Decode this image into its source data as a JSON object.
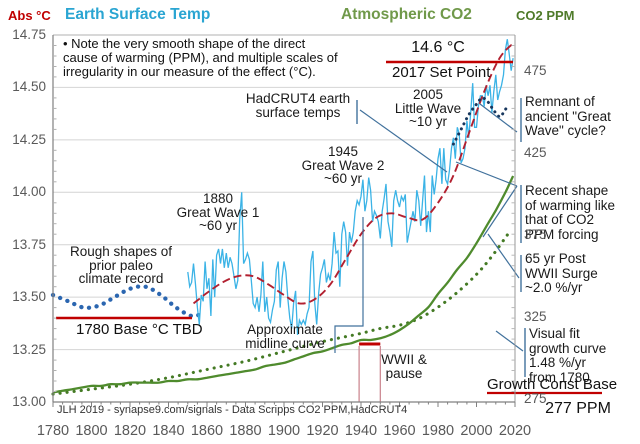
{
  "header": {
    "left_axis_title": "Abs °C",
    "temp_title": "Earth Surface Temp",
    "co2_title": "Atmospheric CO2",
    "right_axis_title": "CO2 PPM"
  },
  "note": {
    "lines": [
      "• Note the very smooth shape of the direct",
      "cause of warming (PPM), and multiple scales of",
      "irregularity in our measure of the effect (°C)."
    ]
  },
  "annotations": {
    "hadcrut": {
      "lines": [
        "HadCRUT4 earth",
        "surface temps"
      ]
    },
    "little_wave": {
      "lines": [
        "2005",
        "Little Wave",
        "~10 yr"
      ]
    },
    "great_wave_2": {
      "lines": [
        "1945",
        "Great Wave 2",
        "~60 yr"
      ]
    },
    "great_wave_1": {
      "lines": [
        "1880",
        "Great Wave 1",
        "~60 yr"
      ]
    },
    "paleo": {
      "lines": [
        "Rough shapes of",
        "prior paleo",
        "climate record"
      ]
    },
    "midline": {
      "lines": [
        "Approximate",
        "midline curve"
      ]
    },
    "wwii": {
      "lines": [
        "WWII &",
        "pause"
      ]
    },
    "remnant": {
      "lines": [
        "Remnant of",
        "ancient \"Great",
        "Wave\" cycle?"
      ]
    },
    "recent": {
      "lines": [
        "Recent shape",
        "of warming like",
        "that of CO2",
        "PPM forcing"
      ]
    },
    "surge": {
      "lines": [
        "65 yr Post",
        "WWII Surge",
        "~2.0 %/yr"
      ]
    },
    "visual_fit": {
      "lines": [
        "Visual fit",
        "growth curve",
        "1.48 %/yr",
        "from 1780"
      ]
    }
  },
  "markers": {
    "set_point_value": "14.6 °C",
    "set_point_label": "2017 Set Point",
    "base_label": "1780 Base °C TBD",
    "growth_base_label": "Growth Const Base",
    "growth_base_ppm": "277 PPM"
  },
  "attribution": "JLH 2019 - synapse9.com/signals -  Data Scripps  CO2 PPM,HadCRUT4",
  "colors": {
    "temp_line": "#3bb3e6",
    "midline": "#b22030",
    "paleo": "#2b66b0",
    "remnant": "#17365d",
    "co2": "#4f8b2d",
    "co2_fit": "#447a24",
    "red_marker": "#c00000",
    "leader": "#41719c",
    "grid": "#d4d4d4",
    "axis": "#808080",
    "axis_text": "#595959",
    "wwii_vertical": "#c9808a"
  },
  "chart_data": {
    "type": "line",
    "x_axis": {
      "range": [
        1780,
        2020
      ],
      "ticks": [
        1780,
        1800,
        1820,
        1840,
        1860,
        1880,
        1900,
        1920,
        1940,
        1960,
        1980,
        2000,
        2020
      ]
    },
    "y_left": {
      "label": "Abs °C",
      "range": [
        13.0,
        14.75
      ],
      "ticks": [
        "14.75",
        "14.50",
        "14.25",
        "14.00",
        "13.75",
        "13.50",
        "13.25",
        "13.00"
      ]
    },
    "y_right": {
      "label": "CO2 PPM",
      "ticks": [
        475,
        425,
        375,
        325,
        275
      ]
    },
    "grid": "horizontal-only",
    "series": [
      {
        "id": "temp",
        "name": "HadCRUT4 earth surface temps",
        "axis": "left",
        "style": "jagged",
        "start_year": 1850,
        "step": 1,
        "values": [
          13.62,
          13.55,
          13.57,
          13.66,
          13.56,
          13.45,
          13.37,
          13.51,
          13.48,
          13.67,
          13.54,
          13.59,
          13.41,
          13.68,
          13.5,
          13.7,
          13.73,
          13.66,
          13.73,
          13.64,
          13.71,
          13.64,
          13.69,
          13.66,
          13.6,
          13.54,
          13.58,
          13.87,
          14.0,
          13.66,
          13.68,
          13.71,
          13.68,
          13.58,
          13.47,
          13.45,
          13.5,
          13.43,
          13.51,
          13.67,
          13.43,
          13.5,
          13.4,
          13.38,
          13.44,
          13.48,
          13.63,
          13.67,
          13.45,
          13.59,
          13.67,
          13.62,
          13.49,
          13.4,
          13.35,
          13.47,
          13.53,
          13.32,
          13.39,
          13.37,
          13.39,
          13.37,
          13.42,
          13.45,
          13.67,
          13.72,
          13.47,
          13.37,
          13.52,
          13.61,
          13.64,
          13.68,
          13.57,
          13.61,
          13.58,
          13.66,
          13.81,
          13.71,
          13.72,
          13.55,
          13.8,
          13.86,
          13.81,
          13.65,
          13.81,
          13.76,
          13.81,
          13.91,
          13.96,
          13.94,
          13.98,
          14.06,
          13.91,
          13.96,
          14.07,
          14.01,
          13.86,
          13.91,
          13.89,
          13.86,
          13.78,
          13.91,
          13.97,
          14.04,
          13.86,
          13.81,
          13.74,
          13.96,
          14.01,
          13.96,
          13.93,
          13.98,
          13.96,
          13.99,
          13.76,
          13.81,
          13.86,
          13.91,
          13.86,
          14.01,
          13.96,
          13.84,
          13.96,
          14.08,
          13.81,
          13.91,
          13.81,
          14.08,
          13.99,
          14.06,
          14.16,
          14.21,
          14.04,
          14.21,
          14.06,
          14.04,
          14.11,
          14.21,
          14.26,
          14.16,
          14.31,
          14.28,
          14.14,
          14.16,
          14.21,
          14.34,
          14.26,
          14.38,
          14.52,
          14.31,
          14.31,
          14.41,
          14.46,
          14.46,
          14.41,
          14.51,
          14.46,
          14.51,
          14.38,
          14.48,
          14.56,
          14.44,
          14.48,
          14.51,
          14.56,
          14.68,
          14.73,
          14.66,
          14.58,
          14.64
        ]
      },
      {
        "id": "midline",
        "name": "Approximate midline curve",
        "axis": "left",
        "style": "dashed",
        "years": [
          1853,
          1860,
          1868,
          1876,
          1884,
          1892,
          1900,
          1908,
          1916,
          1924,
          1932,
          1940,
          1948,
          1956,
          1964,
          1972,
          1980,
          1988,
          1996,
          2004,
          2012,
          2019
        ],
        "values": [
          13.47,
          13.52,
          13.57,
          13.6,
          13.6,
          13.56,
          13.51,
          13.47,
          13.49,
          13.56,
          13.68,
          13.8,
          13.88,
          13.9,
          13.88,
          13.87,
          13.95,
          14.08,
          14.28,
          14.48,
          14.64,
          14.71
        ]
      },
      {
        "id": "paleo",
        "name": "Rough shapes of prior paleo climate record",
        "axis": "left",
        "style": "dotted",
        "years": [
          1780,
          1788,
          1796,
          1804,
          1812,
          1820,
          1828,
          1836,
          1844,
          1852,
          1857
        ],
        "values": [
          13.51,
          13.48,
          13.45,
          13.46,
          13.5,
          13.54,
          13.55,
          13.51,
          13.45,
          13.41,
          13.42
        ]
      },
      {
        "id": "remnant",
        "name": "Remnant of ancient Great Wave cycle",
        "axis": "left",
        "style": "dotted",
        "years": [
          1988,
          1992,
          1996,
          2000,
          2003,
          2006,
          2009,
          2012,
          2014,
          2016
        ],
        "values": [
          14.23,
          14.3,
          14.37,
          14.42,
          14.45,
          14.43,
          14.39,
          14.36,
          14.38,
          14.41
        ]
      },
      {
        "id": "co2",
        "name": "Atmospheric CO2 (Scripps)",
        "axis": "right",
        "style": "solid",
        "years": [
          1780,
          1785,
          1790,
          1795,
          1800,
          1805,
          1810,
          1815,
          1820,
          1825,
          1830,
          1835,
          1840,
          1845,
          1850,
          1855,
          1860,
          1865,
          1870,
          1875,
          1880,
          1885,
          1890,
          1895,
          1900,
          1905,
          1910,
          1915,
          1920,
          1925,
          1930,
          1935,
          1940,
          1945,
          1950,
          1955,
          1960,
          1965,
          1970,
          1975,
          1980,
          1985,
          1990,
          1995,
          2000,
          2005,
          2010,
          2015,
          2019
        ],
        "values": [
          279,
          280,
          281,
          282,
          283,
          283,
          284,
          284,
          285,
          285,
          285,
          285,
          286,
          286,
          287,
          287,
          288,
          289,
          290,
          291,
          292,
          293,
          295,
          296,
          297,
          299,
          301,
          303,
          304,
          306,
          308,
          309,
          311,
          311,
          312,
          314,
          317,
          321,
          326,
          331,
          339,
          346,
          354,
          361,
          370,
          380,
          390,
          401,
          411
        ]
      },
      {
        "id": "co2_fit",
        "name": "Visual fit growth curve 1.48 %/yr from 1780",
        "axis": "right",
        "style": "dotted",
        "years": [
          1780,
          1800,
          1820,
          1840,
          1860,
          1880,
          1900,
          1920,
          1940,
          1950,
          1960,
          1970,
          1980,
          1990,
          2000,
          2008,
          2016
        ],
        "values": [
          278,
          281,
          284,
          288,
          293,
          298,
          304,
          310,
          315,
          318,
          320,
          324,
          331,
          340,
          351,
          362,
          375
        ]
      }
    ],
    "reference_lines": [
      {
        "id": "set_point",
        "label": "2017 Set Point",
        "axis": "left",
        "value": 14.6
      },
      {
        "id": "base_1780",
        "label": "1780 Base °C TBD",
        "axis": "left",
        "value": 13.4
      },
      {
        "id": "growth_const_base",
        "label": "Growth Const Base",
        "axis": "right",
        "value": 277
      },
      {
        "id": "wwii_pause",
        "label": "WWII & pause",
        "axis": "x",
        "span": [
          1939,
          1950
        ]
      }
    ]
  }
}
